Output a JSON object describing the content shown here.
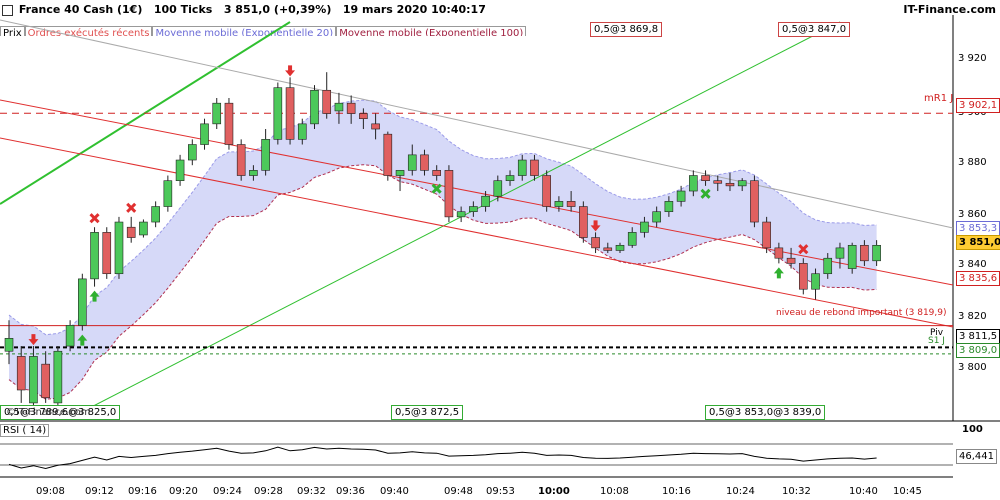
{
  "header": {
    "instrument": "France 40 Cash (1€)",
    "interval": "100 Ticks",
    "price_change": "3 851,0 (+0,39%)",
    "datetime": "19 mars 2020 10:40:17",
    "brand": "IT-Finance.com"
  },
  "legend": {
    "price": "Prix",
    "orders": "Ordres exécutés récents",
    "ema20": "Moyenne mobile (Exponentielle 20)",
    "ema100": "Moyenne mobile (Exponentielle 100)"
  },
  "colors": {
    "up": "#4cc85a",
    "down": "#e06060",
    "band": "#c8ccf5",
    "ema20_line": "#9a9ae8",
    "ema100_line": "#b03050",
    "trend_red": "#e03030",
    "trend_green": "#30c030",
    "trend_gray": "#aaaaaa"
  },
  "annotations": {
    "top1": "0,5@3 869,8",
    "top2": "0,5@3 847,0",
    "bottom1": "0,5@3 789,6",
    "bottom1b": "@3 825,0",
    "bottom2": "0,5@3 872,5",
    "bottom3": "0,5@3 853,0",
    "bottom3b": "@3 839,0",
    "watermark": "©IT-Finance.com",
    "mr1_label": "mR1 J",
    "rebound_label": "niveau de rebond important (3 819,9)",
    "piv_label": "Piv",
    "s1_label": "S1 J"
  },
  "price_axis": {
    "labels": [
      "3 920",
      "3 900",
      "3 880",
      "3 860",
      "3 840",
      "3 820",
      "3 800"
    ],
    "badges": {
      "mr1": "3 902,1",
      "ema20_upper": "3 853,3",
      "last": "3 851,0",
      "ema20_lower": "3 835,6",
      "piv": "3 811,5",
      "s1": "3 809,0"
    }
  },
  "time_axis": [
    "09:08",
    "09:12",
    "09:16",
    "09:20",
    "09:24",
    "09:28",
    "09:32",
    "09:36",
    "09:40",
    "09:48",
    "09:53",
    "10:00",
    "10:08",
    "10:16",
    "10:24",
    "10:32",
    "10:40",
    "10:45"
  ],
  "rsi": {
    "label": "RSI ( 14)",
    "value": "46,441",
    "top_level": "100"
  },
  "chart_data": {
    "type": "candlestick",
    "ylim": [
      3783,
      3932
    ],
    "levels": {
      "mR1": 3902.1,
      "rebound": 3819.9,
      "pivot": 3811.5,
      "s1": 3809.0
    },
    "candles": [
      {
        "o": 3810,
        "h": 3822,
        "l": 3805,
        "c": 3815
      },
      {
        "o": 3808,
        "h": 3812,
        "l": 3790,
        "c": 3795
      },
      {
        "o": 3790,
        "h": 3812,
        "l": 3786,
        "c": 3808
      },
      {
        "o": 3805,
        "h": 3810,
        "l": 3790,
        "c": 3792
      },
      {
        "o": 3790,
        "h": 3812,
        "l": 3786,
        "c": 3810
      },
      {
        "o": 3812,
        "h": 3822,
        "l": 3810,
        "c": 3820
      },
      {
        "o": 3820,
        "h": 3840,
        "l": 3818,
        "c": 3838
      },
      {
        "o": 3838,
        "h": 3858,
        "l": 3835,
        "c": 3856
      },
      {
        "o": 3856,
        "h": 3858,
        "l": 3838,
        "c": 3840
      },
      {
        "o": 3840,
        "h": 3862,
        "l": 3838,
        "c": 3860
      },
      {
        "o": 3858,
        "h": 3862,
        "l": 3852,
        "c": 3854
      },
      {
        "o": 3855,
        "h": 3861,
        "l": 3854,
        "c": 3860
      },
      {
        "o": 3860,
        "h": 3868,
        "l": 3858,
        "c": 3866
      },
      {
        "o": 3866,
        "h": 3878,
        "l": 3864,
        "c": 3876
      },
      {
        "o": 3876,
        "h": 3886,
        "l": 3874,
        "c": 3884
      },
      {
        "o": 3884,
        "h": 3892,
        "l": 3882,
        "c": 3890
      },
      {
        "o": 3890,
        "h": 3900,
        "l": 3888,
        "c": 3898
      },
      {
        "o": 3898,
        "h": 3908,
        "l": 3896,
        "c": 3906
      },
      {
        "o": 3906,
        "h": 3908,
        "l": 3888,
        "c": 3890
      },
      {
        "o": 3890,
        "h": 3892,
        "l": 3876,
        "c": 3878
      },
      {
        "o": 3878,
        "h": 3882,
        "l": 3876,
        "c": 3880
      },
      {
        "o": 3880,
        "h": 3896,
        "l": 3878,
        "c": 3892
      },
      {
        "o": 3892,
        "h": 3914,
        "l": 3890,
        "c": 3912
      },
      {
        "o": 3912,
        "h": 3916,
        "l": 3890,
        "c": 3892
      },
      {
        "o": 3892,
        "h": 3900,
        "l": 3890,
        "c": 3898
      },
      {
        "o": 3898,
        "h": 3913,
        "l": 3896,
        "c": 3911
      },
      {
        "o": 3911,
        "h": 3918,
        "l": 3900,
        "c": 3902
      },
      {
        "o": 3903,
        "h": 3910,
        "l": 3898,
        "c": 3906
      },
      {
        "o": 3906,
        "h": 3909,
        "l": 3898,
        "c": 3902
      },
      {
        "o": 3902,
        "h": 3904,
        "l": 3896,
        "c": 3900
      },
      {
        "o": 3898,
        "h": 3902,
        "l": 3892,
        "c": 3896
      },
      {
        "o": 3894,
        "h": 3895,
        "l": 3876,
        "c": 3878
      },
      {
        "o": 3878,
        "h": 3880,
        "l": 3872,
        "c": 3880
      },
      {
        "o": 3880,
        "h": 3890,
        "l": 3878,
        "c": 3886
      },
      {
        "o": 3886,
        "h": 3888,
        "l": 3878,
        "c": 3880
      },
      {
        "o": 3880,
        "h": 3882,
        "l": 3876,
        "c": 3878
      },
      {
        "o": 3880,
        "h": 3882,
        "l": 3860,
        "c": 3862
      },
      {
        "o": 3862,
        "h": 3866,
        "l": 3860,
        "c": 3864
      },
      {
        "o": 3864,
        "h": 3868,
        "l": 3862,
        "c": 3866
      },
      {
        "o": 3866,
        "h": 3872,
        "l": 3864,
        "c": 3870
      },
      {
        "o": 3870,
        "h": 3878,
        "l": 3868,
        "c": 3876
      },
      {
        "o": 3876,
        "h": 3880,
        "l": 3874,
        "c": 3878
      },
      {
        "o": 3878,
        "h": 3886,
        "l": 3876,
        "c": 3884
      },
      {
        "o": 3884,
        "h": 3886,
        "l": 3876,
        "c": 3878
      },
      {
        "o": 3878,
        "h": 3880,
        "l": 3864,
        "c": 3866
      },
      {
        "o": 3866,
        "h": 3870,
        "l": 3864,
        "c": 3868
      },
      {
        "o": 3868,
        "h": 3872,
        "l": 3864,
        "c": 3866
      },
      {
        "o": 3866,
        "h": 3868,
        "l": 3852,
        "c": 3854
      },
      {
        "o": 3854,
        "h": 3856,
        "l": 3848,
        "c": 3850
      },
      {
        "o": 3850,
        "h": 3852,
        "l": 3848,
        "c": 3849
      },
      {
        "o": 3849,
        "h": 3852,
        "l": 3848,
        "c": 3851
      },
      {
        "o": 3851,
        "h": 3858,
        "l": 3850,
        "c": 3856
      },
      {
        "o": 3856,
        "h": 3862,
        "l": 3854,
        "c": 3860
      },
      {
        "o": 3860,
        "h": 3866,
        "l": 3858,
        "c": 3864
      },
      {
        "o": 3864,
        "h": 3870,
        "l": 3862,
        "c": 3868
      },
      {
        "o": 3868,
        "h": 3874,
        "l": 3866,
        "c": 3872
      },
      {
        "o": 3872,
        "h": 3880,
        "l": 3870,
        "c": 3878
      },
      {
        "o": 3878,
        "h": 3880,
        "l": 3874,
        "c": 3876
      },
      {
        "o": 3876,
        "h": 3878,
        "l": 3872,
        "c": 3875
      },
      {
        "o": 3875,
        "h": 3879,
        "l": 3872,
        "c": 3874
      },
      {
        "o": 3874,
        "h": 3877,
        "l": 3872,
        "c": 3876
      },
      {
        "o": 3876,
        "h": 3878,
        "l": 3858,
        "c": 3860
      },
      {
        "o": 3860,
        "h": 3862,
        "l": 3848,
        "c": 3850
      },
      {
        "o": 3850,
        "h": 3852,
        "l": 3844,
        "c": 3846
      },
      {
        "o": 3846,
        "h": 3850,
        "l": 3842,
        "c": 3844
      },
      {
        "o": 3844,
        "h": 3846,
        "l": 3832,
        "c": 3834
      },
      {
        "o": 3834,
        "h": 3842,
        "l": 3830,
        "c": 3840
      },
      {
        "o": 3840,
        "h": 3848,
        "l": 3838,
        "c": 3846
      },
      {
        "o": 3846,
        "h": 3852,
        "l": 3842,
        "c": 3850
      },
      {
        "o": 3842,
        "h": 3852,
        "l": 3840,
        "c": 3851
      },
      {
        "o": 3851,
        "h": 3853,
        "l": 3843,
        "c": 3845
      },
      {
        "o": 3845,
        "h": 3853,
        "l": 3843,
        "c": 3851
      }
    ],
    "markers": [
      {
        "type": "sell",
        "i": 2
      },
      {
        "type": "buy",
        "i": 6
      },
      {
        "type": "buy",
        "i": 7
      },
      {
        "type": "x",
        "i": 7
      },
      {
        "type": "x",
        "i": 10
      },
      {
        "type": "sell",
        "i": 23
      },
      {
        "type": "xg",
        "i": 35
      },
      {
        "type": "sell",
        "i": 48
      },
      {
        "type": "xg",
        "i": 57
      },
      {
        "type": "buy",
        "i": 63
      },
      {
        "type": "x",
        "i": 65
      }
    ]
  }
}
